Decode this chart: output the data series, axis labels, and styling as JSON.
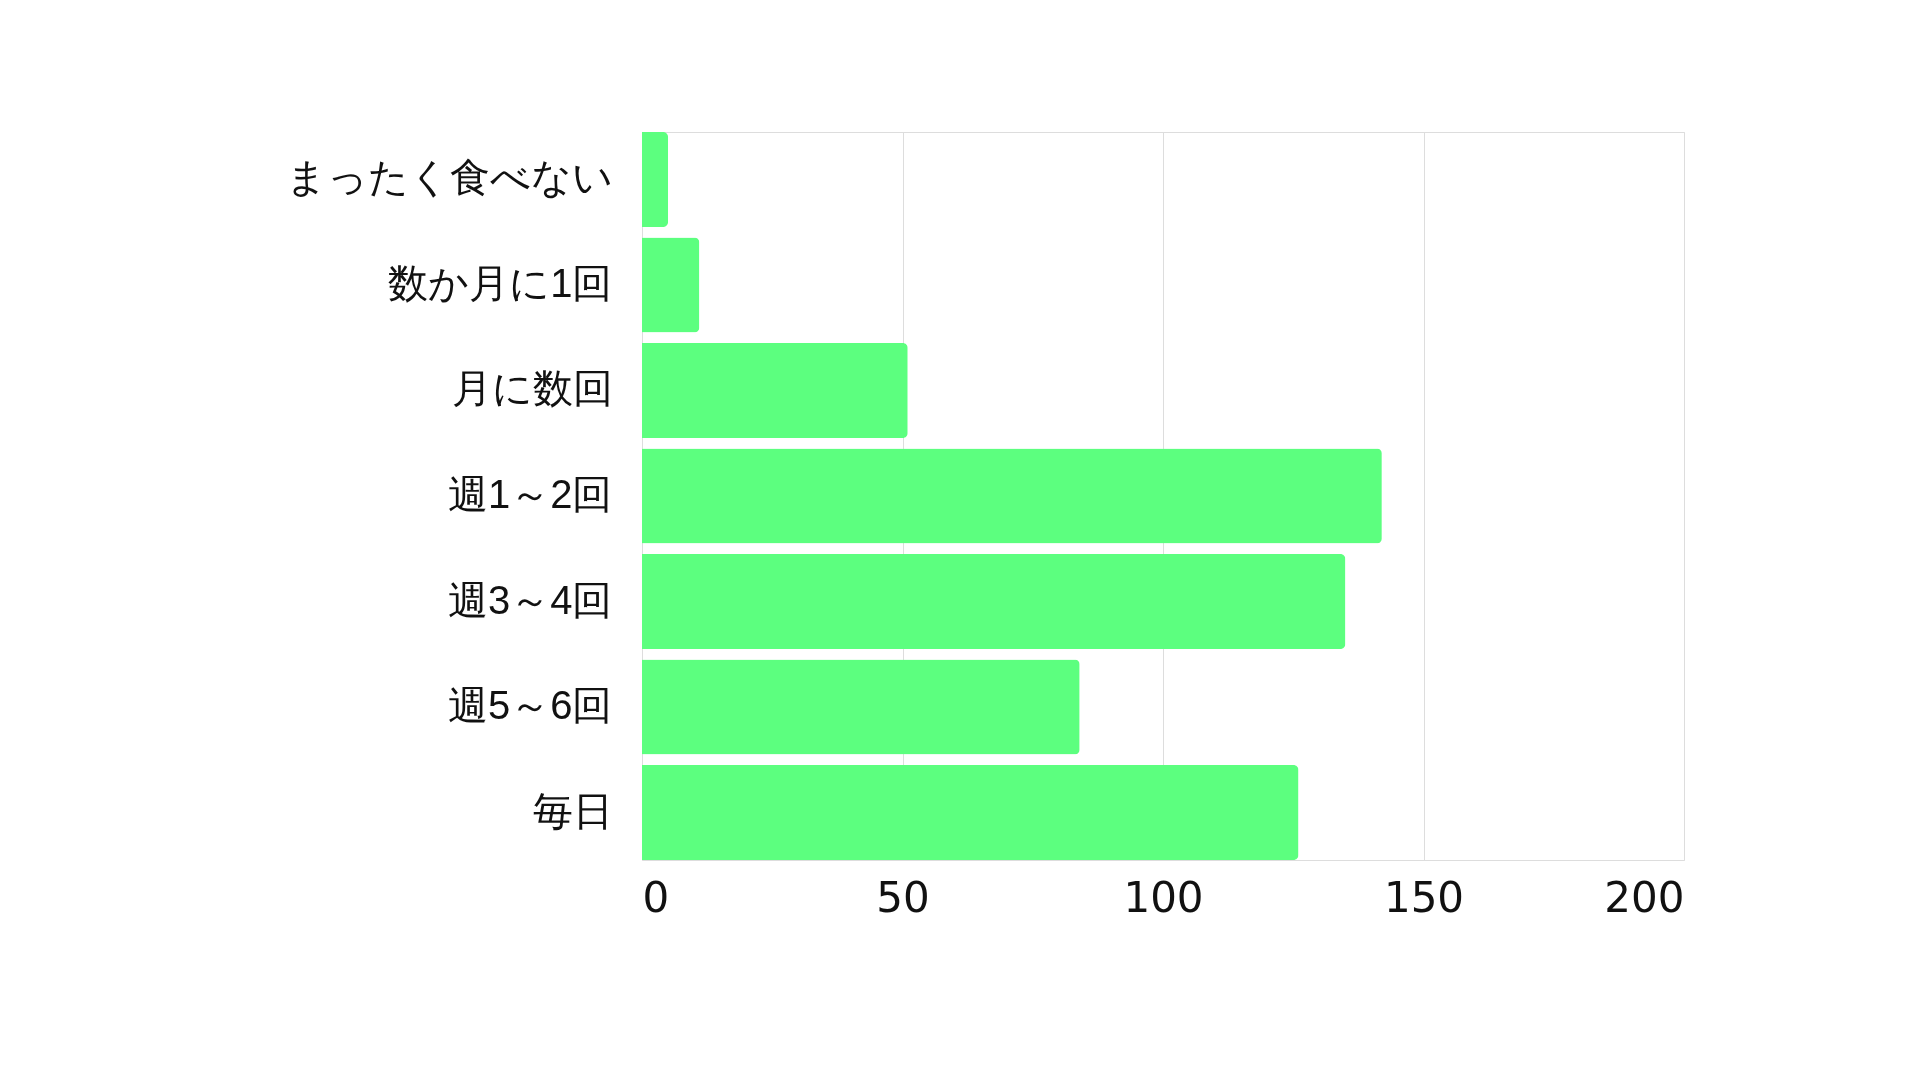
{
  "chart_data": {
    "type": "bar",
    "orientation": "horizontal",
    "categories": [
      "まったく食べない",
      "数か月に1回",
      "月に数回",
      "週1～2回",
      "週3～4回",
      "週5～6回",
      "毎日"
    ],
    "values": [
      5,
      11,
      51,
      142,
      135,
      84,
      126
    ],
    "color": "#5cff7f",
    "xlim": [
      0,
      200
    ],
    "xticks": [
      0,
      50,
      100,
      150,
      200
    ],
    "grid": "x"
  }
}
